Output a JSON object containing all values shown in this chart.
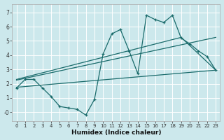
{
  "xlabel": "Humidex (Indice chaleur)",
  "bg_color": "#cce8ec",
  "grid_color": "#ffffff",
  "line_color": "#1a6b6b",
  "xlim": [
    -0.5,
    23.5
  ],
  "ylim": [
    -0.6,
    7.6
  ],
  "xticks": [
    0,
    1,
    2,
    3,
    4,
    5,
    6,
    7,
    8,
    9,
    10,
    11,
    12,
    13,
    14,
    15,
    16,
    17,
    18,
    19,
    20,
    21,
    22,
    23
  ],
  "yticks": [
    0,
    1,
    2,
    3,
    4,
    5,
    6,
    7
  ],
  "ytick_labels": [
    "-0",
    "1",
    "2",
    "3",
    "4",
    "5",
    "6",
    "7"
  ],
  "series1_x": [
    0,
    1,
    2,
    3,
    4,
    5,
    6,
    7,
    8,
    9,
    10,
    11,
    12,
    13,
    14,
    15,
    16,
    17,
    18,
    19,
    20,
    21,
    22,
    23
  ],
  "series1_y": [
    1.7,
    2.3,
    2.3,
    1.7,
    1.1,
    0.4,
    0.3,
    0.2,
    -0.2,
    0.9,
    4.1,
    5.5,
    5.8,
    4.3,
    2.7,
    6.8,
    6.5,
    6.3,
    6.8,
    5.2,
    4.8,
    4.3,
    3.9,
    2.95
  ],
  "line1_x": [
    0,
    23
  ],
  "line1_y": [
    1.75,
    2.95
  ],
  "line2_x": [
    0,
    23
  ],
  "line2_y": [
    2.25,
    5.25
  ],
  "line3_x": [
    0,
    19,
    23
  ],
  "line3_y": [
    2.3,
    5.25,
    2.95
  ]
}
